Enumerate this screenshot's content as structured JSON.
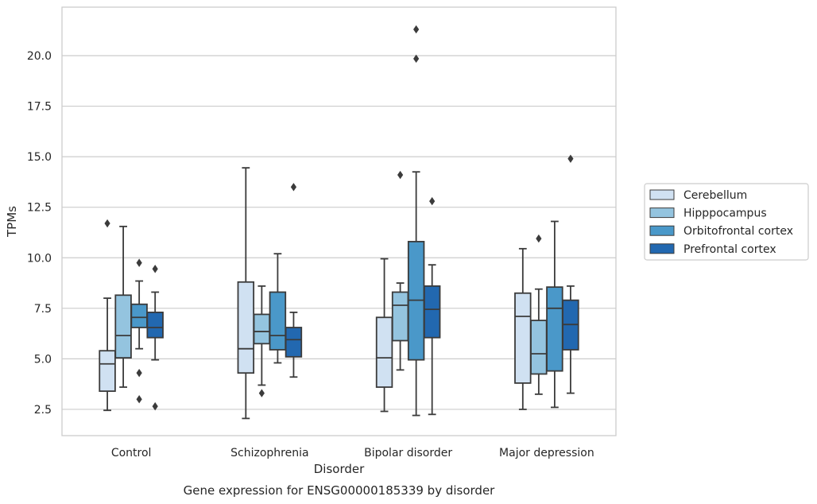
{
  "chart_data": {
    "type": "box",
    "xlabel": "Disorder",
    "ylabel": "TPMs",
    "caption": "Gene expression for ENSG00000185339 by disorder",
    "ylim": [
      1.2,
      22.4
    ],
    "yticks": [
      "2.5",
      "5.0",
      "7.5",
      "10.0",
      "12.5",
      "15.0",
      "17.5",
      "20.0"
    ],
    "ytick_values": [
      2.5,
      5.0,
      7.5,
      10.0,
      12.5,
      15.0,
      17.5,
      20.0
    ],
    "grid": "horizontal",
    "legend_position": "right",
    "categories": [
      "Control",
      "Schizophrenia",
      "Bipolar disorder",
      "Major depression"
    ],
    "series": [
      {
        "name": "Cerebellum",
        "color": "#d0e1f2",
        "boxes": [
          {
            "whisker_low": 2.45,
            "q1": 3.4,
            "median": 4.75,
            "q3": 5.4,
            "whisker_high": 8.0,
            "outliers": [
              11.7
            ]
          },
          {
            "whisker_low": 2.05,
            "q1": 4.3,
            "median": 5.5,
            "q3": 8.8,
            "whisker_high": 14.45,
            "outliers": []
          },
          {
            "whisker_low": 2.4,
            "q1": 3.6,
            "median": 5.05,
            "q3": 7.05,
            "whisker_high": 9.95,
            "outliers": []
          },
          {
            "whisker_low": 2.5,
            "q1": 3.8,
            "median": 7.1,
            "q3": 8.25,
            "whisker_high": 10.45,
            "outliers": []
          }
        ]
      },
      {
        "name": "Hipppocampus",
        "color": "#94c4df",
        "boxes": [
          {
            "whisker_low": 3.6,
            "q1": 5.05,
            "median": 6.15,
            "q3": 8.15,
            "whisker_high": 11.55,
            "outliers": []
          },
          {
            "whisker_low": 3.7,
            "q1": 5.75,
            "median": 6.35,
            "q3": 7.2,
            "whisker_high": 8.6,
            "outliers": [
              3.3
            ]
          },
          {
            "whisker_low": 4.45,
            "q1": 5.9,
            "median": 7.65,
            "q3": 8.3,
            "whisker_high": 8.75,
            "outliers": [
              14.1
            ]
          },
          {
            "whisker_low": 3.25,
            "q1": 4.25,
            "median": 5.25,
            "q3": 6.9,
            "whisker_high": 8.45,
            "outliers": [
              10.95
            ]
          }
        ]
      },
      {
        "name": "Orbitofrontal cortex",
        "color": "#4a98c9",
        "boxes": [
          {
            "whisker_low": 5.5,
            "q1": 6.55,
            "median": 7.05,
            "q3": 7.7,
            "whisker_high": 8.85,
            "outliers": [
              9.75,
              4.3,
              3.0
            ]
          },
          {
            "whisker_low": 4.8,
            "q1": 5.45,
            "median": 6.15,
            "q3": 8.3,
            "whisker_high": 10.2,
            "outliers": []
          },
          {
            "whisker_low": 2.2,
            "q1": 4.95,
            "median": 7.9,
            "q3": 10.8,
            "whisker_high": 14.25,
            "outliers": [
              21.3,
              19.85
            ]
          },
          {
            "whisker_low": 2.6,
            "q1": 4.4,
            "median": 7.5,
            "q3": 8.55,
            "whisker_high": 11.8,
            "outliers": []
          }
        ]
      },
      {
        "name": "Prefrontal cortex",
        "color": "#2268b0",
        "boxes": [
          {
            "whisker_low": 4.95,
            "q1": 6.05,
            "median": 6.55,
            "q3": 7.3,
            "whisker_high": 8.3,
            "outliers": [
              9.45,
              2.65
            ]
          },
          {
            "whisker_low": 4.1,
            "q1": 5.1,
            "median": 5.95,
            "q3": 6.55,
            "whisker_high": 7.3,
            "outliers": [
              13.5
            ]
          },
          {
            "whisker_low": 2.25,
            "q1": 6.05,
            "median": 7.45,
            "q3": 8.6,
            "whisker_high": 9.65,
            "outliers": [
              12.8
            ]
          },
          {
            "whisker_low": 3.3,
            "q1": 5.45,
            "median": 6.7,
            "q3": 7.9,
            "whisker_high": 8.6,
            "outliers": [
              14.9
            ]
          }
        ]
      }
    ]
  }
}
